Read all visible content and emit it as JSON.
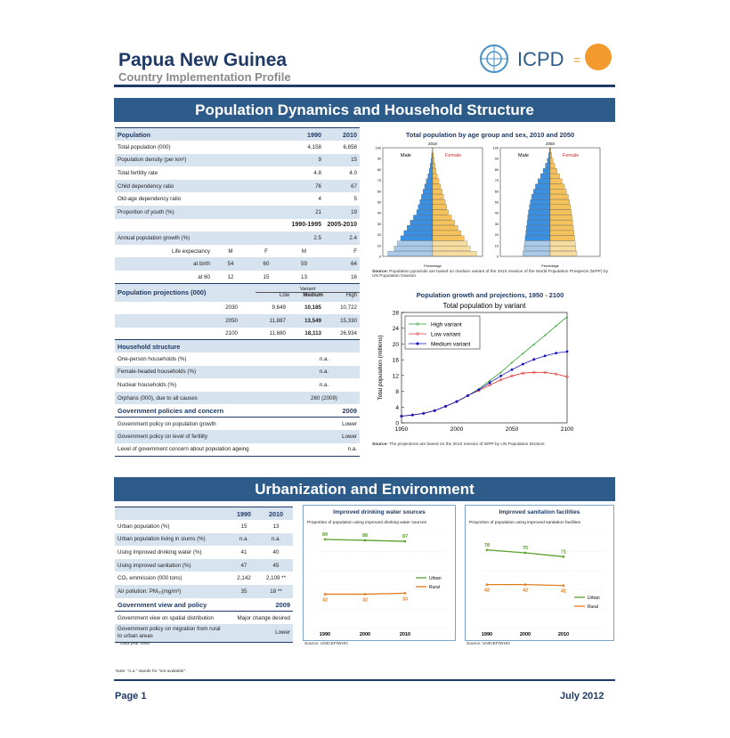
{
  "header": {
    "title": "Papua New Guinea",
    "subtitle": "Country Implementation Profile",
    "logo_text": "ICPD"
  },
  "section1": {
    "banner": "Population Dynamics and Household Structure",
    "population_table": {
      "header": [
        "Population",
        "1990",
        "2010"
      ],
      "rows": [
        [
          "Total population (000)",
          "4,158",
          "6,858"
        ],
        [
          "Population density (per km²)",
          "9",
          "15"
        ],
        [
          "Total fertility rate",
          "4.8",
          "4.0"
        ],
        [
          "Child dependency ratio",
          "76",
          "67"
        ],
        [
          "Old-age dependency ratio",
          "4",
          "5"
        ],
        [
          "Proportion of youth (%)",
          "21",
          "19"
        ]
      ],
      "period_header": [
        "1990-1995",
        "2005-2010"
      ],
      "growth": [
        "Annual population growth (%)",
        "2.5",
        "2.4"
      ],
      "life_exp_header": [
        "Life expectancy",
        "M",
        "F",
        "M",
        "F"
      ],
      "life_birth": [
        "at birth",
        "54",
        "60",
        "59",
        "64"
      ],
      "life_60": [
        "at 60",
        "12",
        "15",
        "13",
        "16"
      ]
    },
    "projections": {
      "title": "Population projections (000)",
      "variant_label": "Variant",
      "cols": [
        "Low",
        "Medium",
        "High"
      ],
      "rows": [
        [
          "2030",
          "9,649",
          "10,185",
          "10,722"
        ],
        [
          "2050",
          "11,887",
          "13,549",
          "15,330"
        ],
        [
          "2100",
          "11,680",
          "18,113",
          "26,934"
        ]
      ]
    },
    "household": {
      "title": "Household structure",
      "rows": [
        [
          "One-person households (%)",
          "n.a."
        ],
        [
          "Female-headed households (%)",
          "n.a."
        ],
        [
          "Nuclear households (%)",
          "n.a."
        ],
        [
          "Orphans (000), due to all causes",
          "260 (2009)"
        ]
      ]
    },
    "policies": {
      "title": "Government policies and concern",
      "year": "2009",
      "rows": [
        [
          "Government policy on population growth",
          "Lower"
        ],
        [
          "Government policy on level of fertility",
          "Lower"
        ],
        [
          "Level of government concern about population ageing",
          "n.a."
        ]
      ]
    },
    "pyramid": {
      "title": "Total population by age group and sex, 2010 and 2050",
      "years": [
        "2010",
        "2050"
      ],
      "male": "Male",
      "female": "Female",
      "source_bold": "Source:",
      "source": "Population pyramids are based on medium variant of the 2010 revision of the World Population Prospects (WPP) by UN Population Division.",
      "age_ticks": [
        "0",
        "10",
        "20",
        "30",
        "40",
        "50",
        "60",
        "70",
        "80",
        "90",
        "100"
      ],
      "x_label": "Percentage"
    },
    "growth_chart": {
      "title": "Population growth and projections, 1950 - 2100",
      "source_bold": "Source:",
      "source": "The projections are based on the 2010 revision of WPP by UN Population Division."
    }
  },
  "section2": {
    "banner": "Urbanization and Environment",
    "table": {
      "header": [
        "",
        "1990",
        "2010"
      ],
      "rows": [
        [
          "Urban population (%)",
          "15",
          "13"
        ],
        [
          "Urban population living in slums (%)",
          "n.a.",
          "n.a."
        ],
        [
          "Using improved drinking water (%)",
          "41",
          "40"
        ],
        [
          "Using improved sanitation (%)",
          "47",
          "45"
        ],
        [
          "CO₂ emmission (000 tons)",
          "2,142",
          "2,109 **"
        ],
        [
          "Air pollution: PM₁₀(mg/m³)",
          "35",
          "18 **"
        ]
      ]
    },
    "gov_view": {
      "title": "Government view and policy",
      "year": "2009",
      "rows": [
        [
          "Government view on spatial distribution",
          "Major change desired"
        ],
        [
          "Government policy on migration from rural to urban areas",
          "Lower"
        ]
      ]
    },
    "footnote_year": "** Data year 2008",
    "water": {
      "title": "Improved drinking water sources",
      "subtitle": "Proportion of population using improved drinking water sources",
      "source": "Source: UNICEF/WHO"
    },
    "sanitation": {
      "title": "Improved sanitation facilities",
      "subtitle": "Proportion of population using improved sanitation facilities",
      "source": "Source: UNICEF/WHO"
    }
  },
  "note": "Note: \"n.a.\" stands for \"not available\".",
  "footer": {
    "page": "Page 1",
    "date": "July 2012"
  },
  "colors": {
    "navy": "#1f3a66",
    "banner": "#2e5c8a",
    "male": "#3b8fe0",
    "female": "#f4c15a",
    "urban": "#5aa02c",
    "rural": "#e07b20"
  },
  "chart_data": [
    {
      "type": "line",
      "title": "Total population by variant",
      "xlabel": "",
      "ylabel": "Total population (millions)",
      "x": [
        1950,
        1960,
        1970,
        1980,
        1990,
        2000,
        2010,
        2020,
        2030,
        2040,
        2050,
        2060,
        2070,
        2080,
        2090,
        2100
      ],
      "xlim": [
        1950,
        2100
      ],
      "ylim": [
        0,
        28
      ],
      "yticks": [
        0,
        4,
        8,
        12,
        16,
        20,
        24,
        28
      ],
      "xticks": [
        1950,
        2000,
        2050,
        2100
      ],
      "legend": "top-left",
      "series": [
        {
          "name": "High variant",
          "color": "#2ca02c",
          "values": [
            1.7,
            2.0,
            2.4,
            3.1,
            4.2,
            5.4,
            6.9,
            8.6,
            10.7,
            12.8,
            15.3,
            17.6,
            19.9,
            22.2,
            24.6,
            26.9
          ]
        },
        {
          "name": "Low variant",
          "color": "#e03030",
          "values": [
            1.7,
            2.0,
            2.4,
            3.1,
            4.2,
            5.4,
            6.9,
            8.2,
            9.6,
            10.9,
            11.9,
            12.6,
            12.8,
            12.8,
            12.4,
            11.7
          ]
        },
        {
          "name": "Medium variant",
          "color": "#1010c0",
          "values": [
            1.7,
            2.0,
            2.4,
            3.1,
            4.2,
            5.4,
            6.9,
            8.4,
            10.2,
            11.9,
            13.5,
            14.9,
            16.1,
            17.0,
            17.7,
            18.1
          ]
        }
      ]
    },
    {
      "type": "line",
      "title": "Improved drinking water sources",
      "categories": [
        "1990",
        "2000",
        "2010"
      ],
      "ylim": [
        0,
        100
      ],
      "legend": "right",
      "series": [
        {
          "name": "Urban",
          "values": [
            89,
            88,
            87
          ]
        },
        {
          "name": "Rural",
          "values": [
            32,
            32,
            33
          ]
        }
      ]
    },
    {
      "type": "line",
      "title": "Improved sanitation facilities",
      "categories": [
        "1990",
        "2000",
        "2010"
      ],
      "ylim": [
        0,
        100
      ],
      "legend": "bottom-right",
      "series": [
        {
          "name": "Urban",
          "values": [
            78,
            75,
            71
          ]
        },
        {
          "name": "Rural",
          "values": [
            42,
            42,
            41
          ]
        }
      ]
    }
  ]
}
